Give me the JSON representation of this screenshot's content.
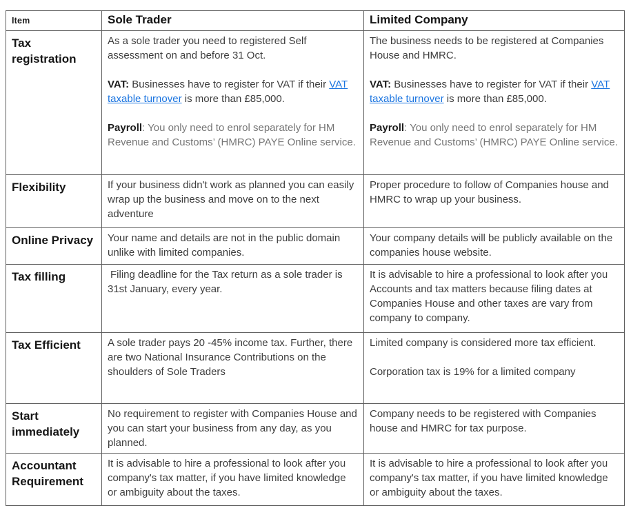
{
  "colors": {
    "border": "#5f5f5f",
    "body_text": "#3d3d3d",
    "heading_text": "#161616",
    "muted_text": "#767676",
    "link": "#1a74e0",
    "background": "#ffffff"
  },
  "table": {
    "col_headers": [
      "Item",
      "Sole Trader",
      "Limited Company"
    ],
    "rows": [
      {
        "item": "Tax registration",
        "sole": {
          "p1": "As a sole trader you need to registered Self assessment on and before 31 Oct.",
          "vat_label": "VAT:",
          "vat_pre": "  Businesses have to register for VAT if their ",
          "vat_link": "VAT taxable turnover",
          "vat_post": " is more than £85,000.",
          "payroll_label": "Payroll",
          "payroll_rest": ": You only need to enrol separately for HM Revenue and Customs’ (HMRC) PAYE Online service."
        },
        "limited": {
          "p1": "The business needs to be registered at Companies House and HMRC.",
          "vat_label": "VAT:",
          "vat_pre": "  Businesses have to register for VAT if their ",
          "vat_link": "VAT taxable turnover",
          "vat_post": " is more than £85,000.",
          "payroll_label": "Payroll",
          "payroll_rest": ": You only need to enrol separately for HM Revenue and Customs’ (HMRC) PAYE Online service."
        }
      },
      {
        "item": "Flexibility",
        "sole": "If your business didn't work as planned you can easily wrap up the business and move on to the next adventure",
        "limited": "Proper procedure to follow of Companies house and HMRC to wrap up your business."
      },
      {
        "item": "Online Privacy",
        "sole": "Your name and details are not in the public domain unlike with limited companies.",
        "limited": "Your company details will be publicly available on the companies house website."
      },
      {
        "item": "Tax filling",
        "sole": "Filing deadline for the Tax return as a sole trader is 31st January, every year.",
        "limited": "It is advisable to hire a professional to look after you Accounts and  tax matters because filing dates at Companies House and other taxes are vary from company to company."
      },
      {
        "item": "Tax Efficient",
        "sole": "A sole trader pays 20 -45% income tax. Further, there are two National Insurance Contributions on the shoulders of Sole Traders",
        "limited_p1": "Limited company is considered more tax efficient.",
        "limited_p2": "Corporation tax is 19% for a limited company"
      },
      {
        "item": "Start immediately",
        "sole": "No requirement to register with Companies House and you can start your business from any day, as you planned.",
        "limited": "Company needs to be registered with Companies house and HMRC for tax purpose."
      },
      {
        "item": "Accountant Requirement",
        "sole": "It is advisable to hire a professional to look after you company's tax matter, if you have limited knowledge or ambiguity about the taxes.",
        "limited": "It is advisable to hire a professional to look after you company's tax matter, if you have limited knowledge  or ambiguity about the taxes."
      }
    ]
  }
}
